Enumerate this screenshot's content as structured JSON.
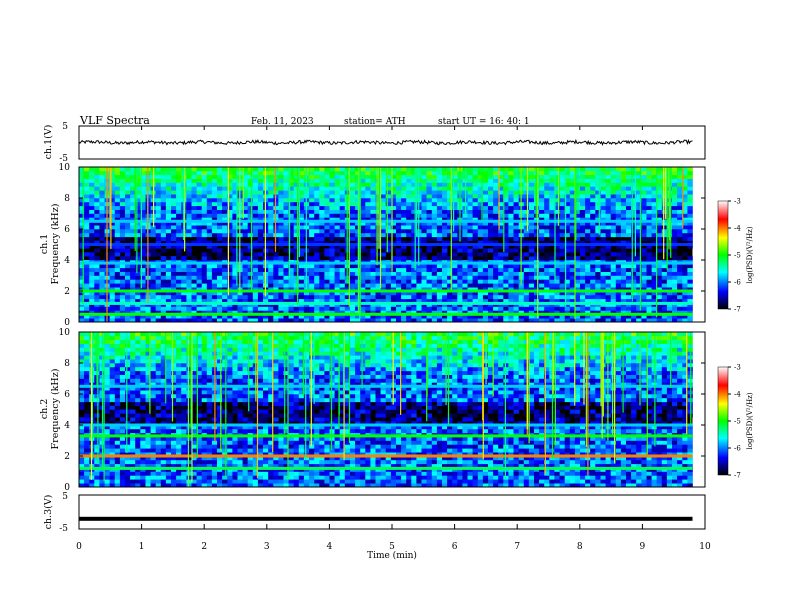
{
  "header": {
    "title": "VLF  Spectra",
    "date": "Feb. 11, 2023",
    "station": "station= ATH",
    "start": "start  UT  =   16: 40: 1"
  },
  "colors": {
    "ch1_trace": "#000000",
    "ch3_trace": "#000000",
    "spectrogram_background": "#000000"
  },
  "colorbar": {
    "label": "log(PSD)(V²/Hz)",
    "ticks": [
      "-3",
      "-4",
      "-5",
      "-6",
      "-7"
    ],
    "stops": [
      "#ffffff",
      "#ff0000",
      "#ffff00",
      "#00ff00",
      "#00ffff",
      "#0000ff",
      "#000000"
    ]
  },
  "chart_data": [
    {
      "type": "line",
      "name": "ch1 waveform",
      "ylabel": "ch.1(V)",
      "yticks": [
        "5",
        "-5"
      ],
      "ylim": [
        -5,
        5
      ],
      "xlim": [
        0,
        10
      ],
      "trace_span_min": [
        0,
        9.8
      ],
      "approx_level_V": 0,
      "approx_amplitude_V": 1.0
    },
    {
      "type": "heatmap",
      "name": "ch.1 spectrogram",
      "ylabel": "ch.1\nFrequency (kHz)",
      "yticks": [
        "10",
        "8",
        "6",
        "4",
        "2",
        "0"
      ],
      "ylim": [
        0,
        10
      ],
      "xlim": [
        0,
        10
      ],
      "data_span_min": [
        0,
        9.8
      ],
      "colorbar_range": [
        -7,
        -3
      ],
      "notable_bands_kHz": [
        {
          "freq": 2.0,
          "level": -5.0
        },
        {
          "freq": 1.2,
          "level": -5.5
        },
        {
          "freq": 0.5,
          "level": -5.0
        },
        {
          "freq": 3.8,
          "level": -5.8
        },
        {
          "freq": 5.0,
          "level": -6.2
        },
        {
          "freq": 6.5,
          "level": -5.8
        }
      ]
    },
    {
      "type": "heatmap",
      "name": "ch.2 spectrogram",
      "ylabel": "ch.2\nFrequency (kHz)",
      "yticks": [
        "10",
        "8",
        "6",
        "4",
        "2",
        "0"
      ],
      "ylim": [
        0,
        10
      ],
      "xlim": [
        0,
        10
      ],
      "data_span_min": [
        0,
        9.8
      ],
      "colorbar_range": [
        -7,
        -3
      ],
      "notable_bands_kHz": [
        {
          "freq": 2.0,
          "level": -4.0
        },
        {
          "freq": 3.3,
          "level": -5.0
        },
        {
          "freq": 1.2,
          "level": -5.2
        },
        {
          "freq": 4.0,
          "level": -5.8
        },
        {
          "freq": 6.5,
          "level": -5.8
        }
      ]
    },
    {
      "type": "line",
      "name": "ch3 waveform",
      "ylabel": "ch.3(V)",
      "yticks": [
        "5",
        "-5"
      ],
      "ylim": [
        -5,
        5
      ],
      "xlim": [
        0,
        10
      ],
      "xlabel": "Time  (min)",
      "xticks": [
        "0",
        "1",
        "2",
        "3",
        "4",
        "5",
        "6",
        "7",
        "8",
        "9",
        "10"
      ],
      "trace_span_min": [
        0,
        9.8
      ],
      "approx_level_V": -2.0
    }
  ]
}
